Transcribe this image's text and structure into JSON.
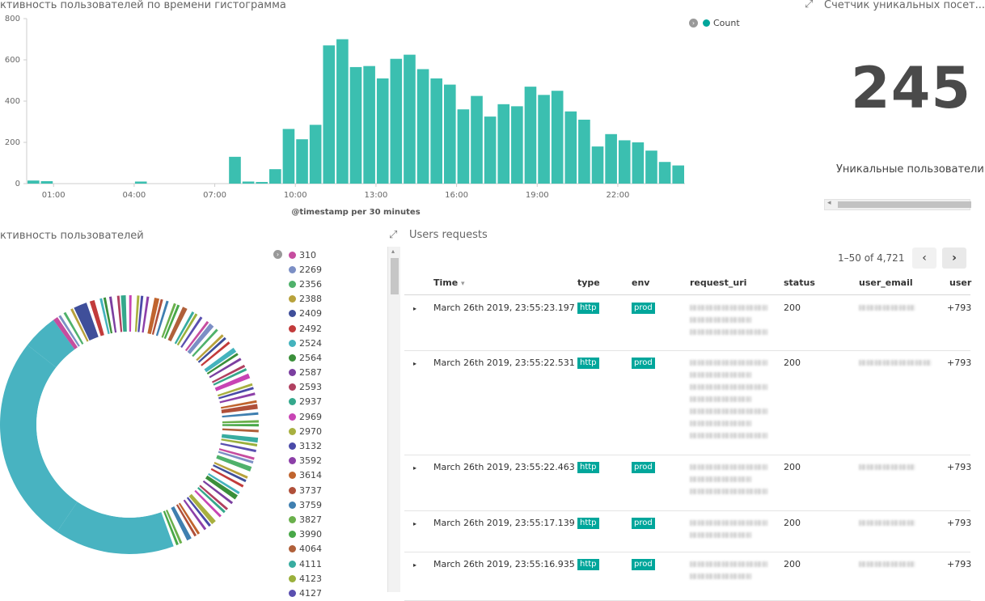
{
  "histogram": {
    "title": "ктивность пользователей по времени гистограмма",
    "xlabel": "@timestamp per 30 minutes",
    "legend_label": "Count",
    "color": "#3bbfb0"
  },
  "chart_data": {
    "type": "bar",
    "x_tick_labels": [
      "01:00",
      "04:00",
      "07:00",
      "10:00",
      "13:00",
      "16:00",
      "19:00",
      "22:00"
    ],
    "y_tick_labels": [
      "0",
      "200",
      "400",
      "600",
      "800"
    ],
    "ylim": [
      0,
      800
    ],
    "series": [
      {
        "values": [
          15,
          12,
          0,
          0,
          0,
          0,
          0,
          0,
          10,
          0,
          0,
          0,
          0,
          0,
          0,
          130,
          10,
          8,
          70,
          265,
          215,
          285,
          670,
          700,
          565,
          570,
          510,
          605,
          625,
          555,
          510,
          480,
          360,
          425,
          325,
          385,
          375,
          470,
          430,
          450,
          350,
          310,
          180,
          240,
          210,
          200,
          160,
          105,
          88
        ]
      }
    ]
  },
  "metric": {
    "title": "Счетчик уникальных посет...",
    "value": "245",
    "label": "Уникальные пользователи"
  },
  "pie": {
    "title": "ктивность пользователей",
    "main_color": "#48b3c1",
    "legend": [
      {
        "label": "310",
        "color": "#c64d9f"
      },
      {
        "label": "2269",
        "color": "#7c8fc5"
      },
      {
        "label": "2356",
        "color": "#4fb16b"
      },
      {
        "label": "2388",
        "color": "#b8a23c"
      },
      {
        "label": "2409",
        "color": "#3f4f9a"
      },
      {
        "label": "2492",
        "color": "#c23b3b"
      },
      {
        "label": "2524",
        "color": "#44b3bd"
      },
      {
        "label": "2564",
        "color": "#3a8f3a"
      },
      {
        "label": "2587",
        "color": "#7b3fa0"
      },
      {
        "label": "2593",
        "color": "#b04060"
      },
      {
        "label": "2937",
        "color": "#35a88c"
      },
      {
        "label": "2969",
        "color": "#c844b4"
      },
      {
        "label": "2970",
        "color": "#a8b040"
      },
      {
        "label": "3132",
        "color": "#4a4aa8"
      },
      {
        "label": "3592",
        "color": "#8c3fa8"
      },
      {
        "label": "3614",
        "color": "#c0642e"
      },
      {
        "label": "3737",
        "color": "#b0503a"
      },
      {
        "label": "3759",
        "color": "#3f7fb0"
      },
      {
        "label": "3827",
        "color": "#6ab04c"
      },
      {
        "label": "3990",
        "color": "#48a848"
      },
      {
        "label": "4064",
        "color": "#b0603a"
      },
      {
        "label": "4111",
        "color": "#38aca0"
      },
      {
        "label": "4123",
        "color": "#9ab03c"
      },
      {
        "label": "4127",
        "color": "#5a4fb0"
      }
    ]
  },
  "requests": {
    "title": "Users requests",
    "pagination": "1–50 of 4,721",
    "columns": [
      "Time",
      "type",
      "env",
      "request_uri",
      "status",
      "user_email",
      "user"
    ],
    "rows": [
      {
        "time": "March 26th 2019, 23:55:23.197",
        "type": "http",
        "env": "prod",
        "status": "200",
        "user": "+793"
      },
      {
        "time": "March 26th 2019, 23:55:22.531",
        "type": "http",
        "env": "prod",
        "status": "200",
        "user": "+793"
      },
      {
        "time": "March 26th 2019, 23:55:22.463",
        "type": "http",
        "env": "prod",
        "status": "200",
        "user": "+793"
      },
      {
        "time": "March 26th 2019, 23:55:17.139",
        "type": "http",
        "env": "prod",
        "status": "200",
        "user": "+793"
      },
      {
        "time": "March 26th 2019, 23:55:16.935",
        "type": "http",
        "env": "prod",
        "status": "200",
        "user": "+793"
      }
    ]
  }
}
